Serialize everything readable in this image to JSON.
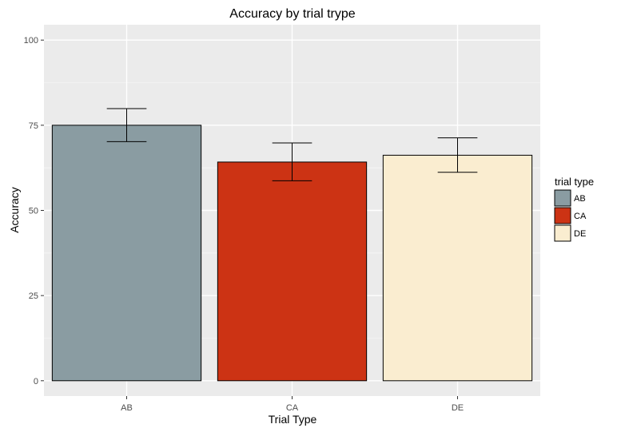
{
  "chart_data": {
    "type": "bar",
    "title": "Accuracy by trial trype",
    "xlabel": "Trial Type",
    "ylabel": "Accuracy",
    "categories": [
      "AB",
      "CA",
      "DE"
    ],
    "values": [
      75,
      64.2,
      66.2
    ],
    "error_low": [
      70.2,
      58.7,
      61.2
    ],
    "error_high": [
      79.9,
      69.8,
      71.3
    ],
    "colors": [
      "#8a9ca2",
      "#cc3314",
      "#faedd0"
    ],
    "ylim": [
      -4.5,
      104.5
    ],
    "yticks": [
      0,
      25,
      50,
      75,
      100
    ],
    "ytick_labels": [
      "0",
      "25",
      "50",
      "75",
      "100"
    ],
    "grid": true,
    "panel_background": "#ebebeb",
    "legend": {
      "title": "trial type",
      "placement": "right",
      "entries": [
        "AB",
        "CA",
        "DE"
      ]
    }
  }
}
